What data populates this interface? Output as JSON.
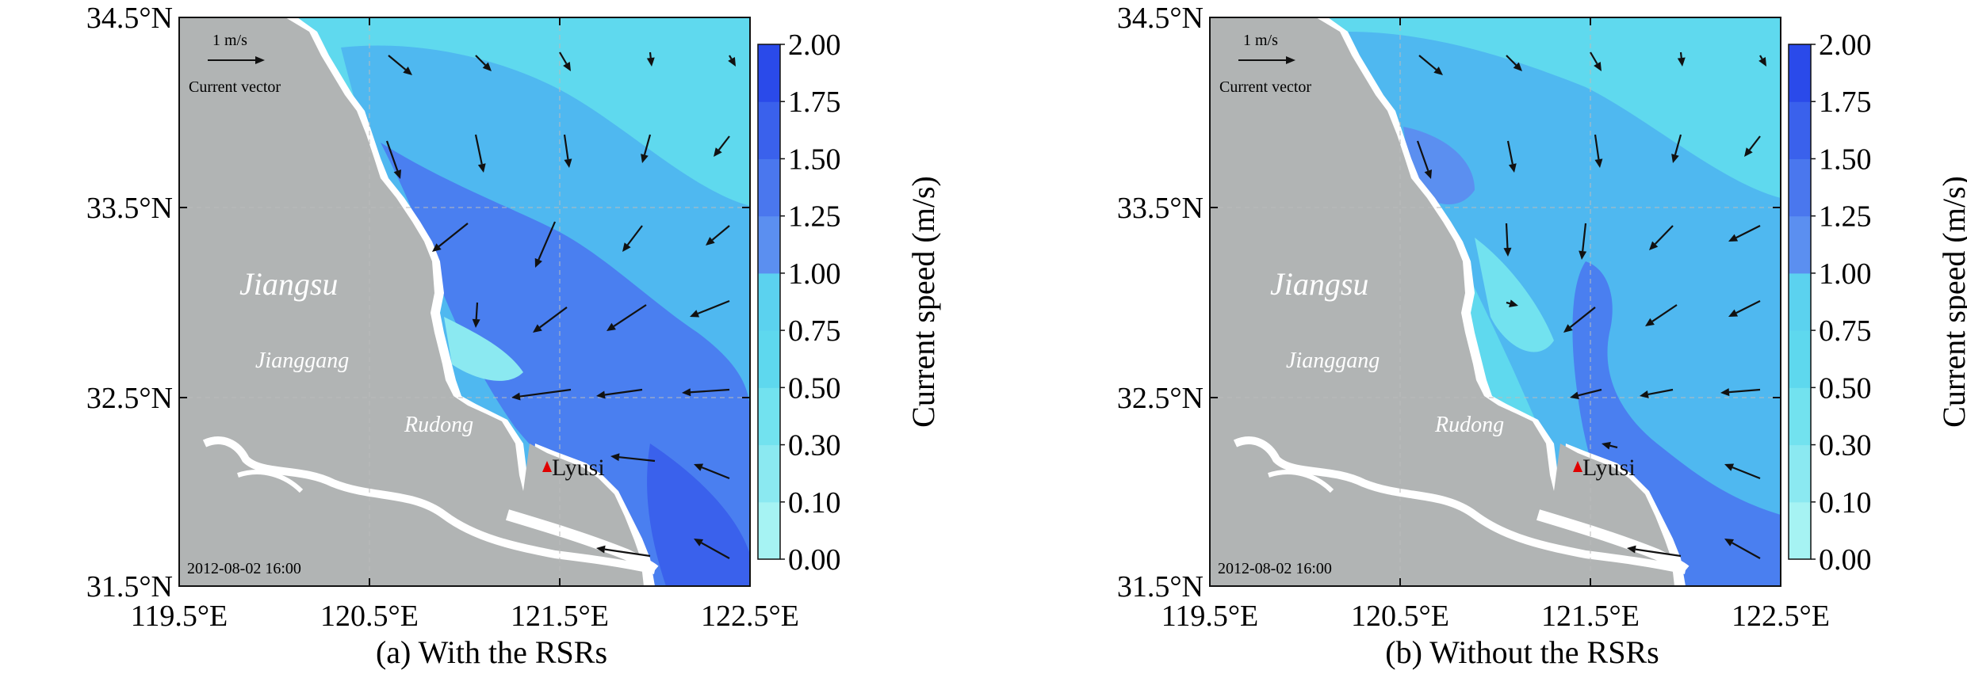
{
  "panels": [
    {
      "id": "a",
      "caption": "(a) With the RSRs",
      "timestamp": "2012-08-02 16:00",
      "vector_legend": {
        "value": "1 m/s",
        "label": "Current vector"
      },
      "place_labels": {
        "province": "Jiangsu",
        "town1": "Jianggang",
        "town2": "Rudong",
        "station": "Lyusi"
      }
    },
    {
      "id": "b",
      "caption": "(b) Without the RSRs",
      "timestamp": "2012-08-02 16:00",
      "vector_legend": {
        "value": "1 m/s",
        "label": "Current vector"
      },
      "place_labels": {
        "province": "Jiangsu",
        "town1": "Jianggang",
        "town2": "Rudong",
        "station": "Lyusi"
      }
    }
  ],
  "axes": {
    "lon_ticks": [
      "119.5°E",
      "120.5°E",
      "121.5°E",
      "122.5°E"
    ],
    "lat_ticks": [
      "31.5°N",
      "32.5°N",
      "33.5°N",
      "34.5°N"
    ]
  },
  "colorbar": {
    "title": "Current speed (m/s)",
    "levels": [
      "0.00",
      "0.10",
      "0.30",
      "0.50",
      "0.75",
      "1.00",
      "1.25",
      "1.50",
      "1.75",
      "2.00"
    ],
    "colors": [
      "#a6f3f3",
      "#8be9f1",
      "#72e2ef",
      "#5ed8ee",
      "#5bd2ef",
      "#5b8ff0",
      "#4a77ee",
      "#3a61ec",
      "#2a4aea"
    ]
  },
  "colors": {
    "land": "#b1b4b4",
    "coast_white": "#ffffff",
    "sea_light": "#5fd9ee",
    "sea_mid": "#4fb8f0",
    "sea_deep": "#4a7ff0",
    "station_marker": "#e00000"
  }
}
